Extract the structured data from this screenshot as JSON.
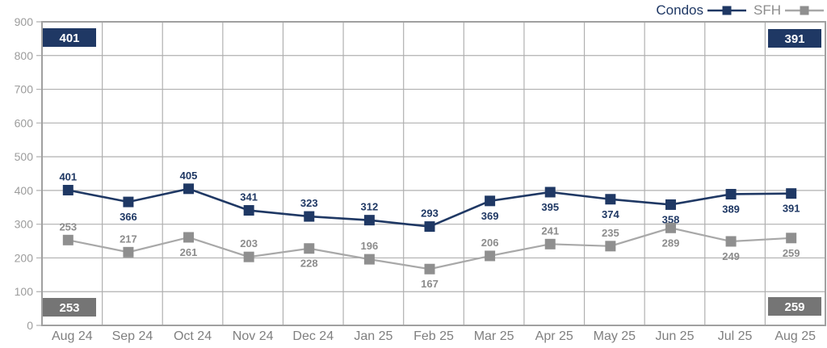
{
  "chart_data": {
    "type": "line",
    "title": "",
    "xlabel": "",
    "ylabel": "",
    "categories": [
      "Aug 24",
      "Sep 24",
      "Oct 24",
      "Nov 24",
      "Dec 24",
      "Jan 25",
      "Feb 25",
      "Mar 25",
      "Apr 25",
      "May 25",
      "Jun 25",
      "Jul 25",
      "Aug 25"
    ],
    "yticks": [
      0,
      100,
      200,
      300,
      400,
      500,
      600,
      700,
      800,
      900
    ],
    "ylim": [
      0,
      900
    ],
    "grid": true,
    "legend_position": "top-right",
    "series": [
      {
        "name": "Condos",
        "color": "#1f3864",
        "line_color": "#1f3864",
        "label_color": "#1f3864",
        "values": [
          401,
          366,
          405,
          341,
          323,
          312,
          293,
          369,
          395,
          374,
          358,
          389,
          391
        ],
        "label_positions": [
          "above",
          "below",
          "above",
          "above",
          "above",
          "above",
          "above",
          "below",
          "below",
          "below",
          "below",
          "below",
          "below"
        ]
      },
      {
        "name": "SFH",
        "color": "#8f8f8f",
        "line_color": "#a8a8a8",
        "label_color": "#8c8c8c",
        "values": [
          253,
          217,
          261,
          203,
          228,
          196,
          167,
          206,
          241,
          235,
          289,
          249,
          259
        ],
        "label_positions": [
          "above",
          "above",
          "below",
          "above",
          "below",
          "above",
          "below",
          "above",
          "above",
          "above",
          "below",
          "below",
          "below"
        ]
      }
    ],
    "corner_badges": [
      {
        "value": "401",
        "corner": "top-left",
        "bg": "#1f3864",
        "text_color": "#ffffff"
      },
      {
        "value": "391",
        "corner": "top-right",
        "bg": "#1f3864",
        "text_color": "#ffffff"
      },
      {
        "value": "253",
        "corner": "bottom-left",
        "bg": "#757575",
        "text_color": "#ffffff"
      },
      {
        "value": "259",
        "corner": "bottom-right",
        "bg": "#757575",
        "text_color": "#ffffff"
      }
    ],
    "axis_colors": {
      "y_tick_label": "#9c9c9c",
      "x_tick_label": "#7f7f7f",
      "gridline": "#b0b0b0",
      "plot_border": "#a0a0a0"
    }
  }
}
